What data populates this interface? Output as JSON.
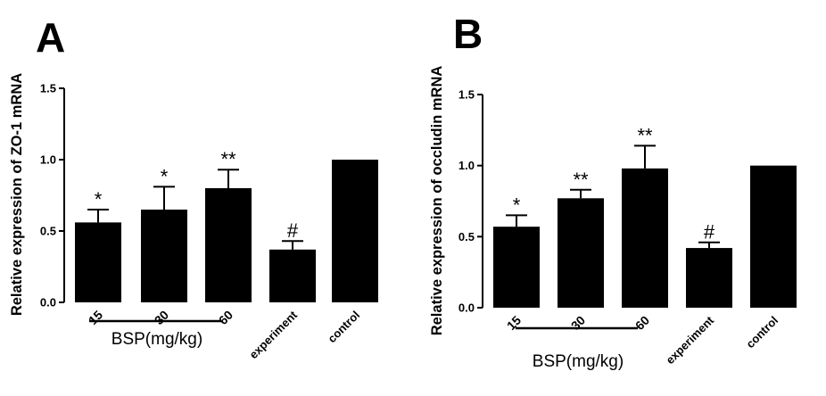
{
  "panels": [
    {
      "label": "A",
      "ylabel": "Relative expression of ZO-1 mRNA",
      "group_label": "BSP(mg/kg)"
    },
    {
      "label": "B",
      "ylabel": "Relative expression of occludin mRNA",
      "group_label": "BSP(mg/kg)"
    }
  ],
  "chart_data": [
    {
      "type": "bar",
      "title": "",
      "panel_label": "A",
      "ylabel": "Relative expression of ZO-1 mRNA",
      "xlabel": "",
      "categories": [
        "15",
        "30",
        "60",
        "experiment",
        "control"
      ],
      "values": [
        0.56,
        0.65,
        0.8,
        0.37,
        1.0
      ],
      "error": [
        0.09,
        0.16,
        0.13,
        0.06,
        0.0
      ],
      "annotations": [
        "*",
        "*",
        "**",
        "#",
        ""
      ],
      "group": {
        "label": "BSP(mg/kg)",
        "categories": [
          "15",
          "30",
          "60"
        ]
      },
      "yticks": [
        "0.0",
        "0.5",
        "1.0",
        "1.5"
      ],
      "ylim": [
        0,
        1.5
      ],
      "bar_color": "#000000",
      "grid": false
    },
    {
      "type": "bar",
      "title": "",
      "panel_label": "B",
      "ylabel": "Relative expression of occludin mRNA",
      "xlabel": "",
      "categories": [
        "15",
        "30",
        "60",
        "experiment",
        "control"
      ],
      "values": [
        0.57,
        0.77,
        0.98,
        0.42,
        1.0
      ],
      "error": [
        0.08,
        0.06,
        0.16,
        0.04,
        0.0
      ],
      "annotations": [
        "*",
        "**",
        "**",
        "#",
        ""
      ],
      "group": {
        "label": "BSP(mg/kg)",
        "categories": [
          "15",
          "30",
          "60"
        ]
      },
      "yticks": [
        "0.0",
        "0.5",
        "1.0",
        "1.5"
      ],
      "ylim": [
        0,
        1.5
      ],
      "bar_color": "#000000",
      "grid": false
    }
  ]
}
